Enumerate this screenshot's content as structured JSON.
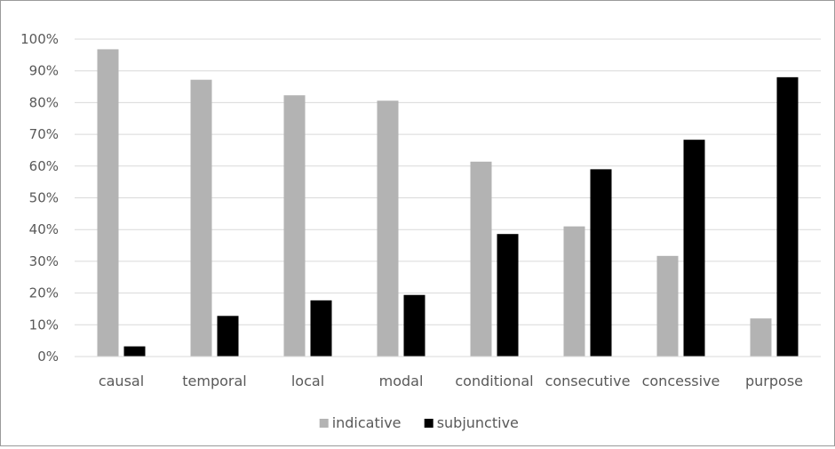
{
  "chart_data": {
    "type": "bar",
    "title": "",
    "xlabel": "",
    "ylabel": "",
    "ylim": [
      0,
      100
    ],
    "y_ticks": [
      "0%",
      "10%",
      "20%",
      "30%",
      "40%",
      "50%",
      "60%",
      "70%",
      "80%",
      "90%",
      "100%"
    ],
    "grid": true,
    "legend_position": "bottom",
    "categories": [
      "causal",
      "temporal",
      "local",
      "modal",
      "conditional",
      "consecutive",
      "concessive",
      "purpose"
    ],
    "series": [
      {
        "name": "indicative",
        "color": "#b3b3b3",
        "values": [
          96.8,
          87.2,
          82.3,
          80.6,
          61.4,
          41,
          31.7,
          12
        ]
      },
      {
        "name": "subjunctive",
        "color": "#000000",
        "values": [
          3.2,
          12.8,
          17.7,
          19.4,
          38.6,
          59,
          68.3,
          88
        ]
      }
    ]
  }
}
